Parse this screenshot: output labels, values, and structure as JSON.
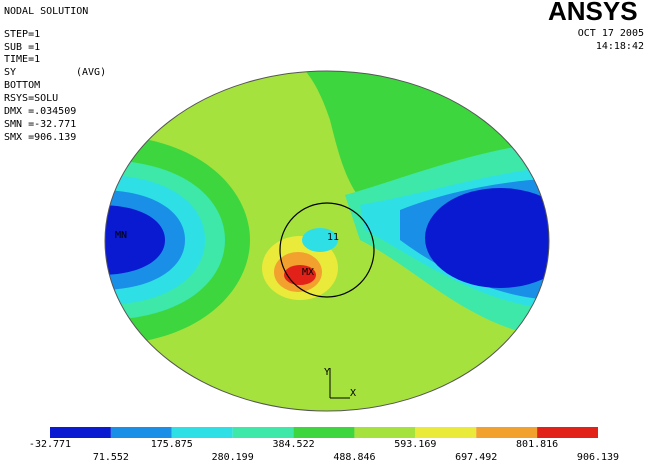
{
  "header": {
    "lines": [
      "NODAL SOLUTION",
      "STEP=1",
      "SUB =1",
      "TIME=1",
      "SY",
      "(AVG)",
      "BOTTOM",
      "RSYS=SOLU",
      "DMX =.034509",
      "SMN =-32.771",
      "SMX =906.139"
    ],
    "logo": "ANSYS",
    "date": "OCT 17 2005",
    "time": "14:18:42"
  },
  "plot": {
    "min_label": "MN",
    "max_label": "MX",
    "node_label": "11",
    "axis_y": "Y",
    "axis_x": "X"
  },
  "legend": {
    "colors": [
      "#0a1ad0",
      "#1a8fe8",
      "#2ee0e6",
      "#3de8a8",
      "#3ed63e",
      "#a6e23e",
      "#eaea3a",
      "#f2a02e",
      "#e22218"
    ],
    "labels": [
      -32.771,
      71.552,
      175.875,
      280.199,
      384.522,
      488.846,
      593.169,
      697.492,
      801.816,
      906.139
    ]
  }
}
